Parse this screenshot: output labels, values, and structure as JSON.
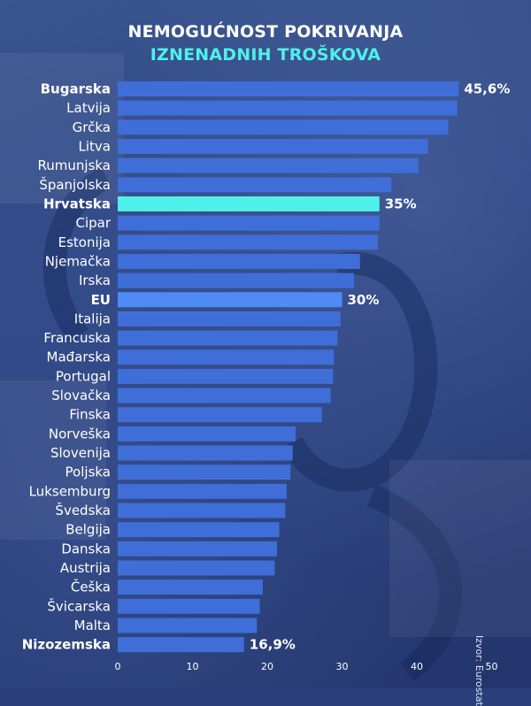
{
  "title_line1": "NEMOGUĆNOST POKRIVANJA",
  "title_line2": "IZNENADNIH TROŠKOVA",
  "source": "Izvor: Eurostat",
  "colors": {
    "bar_default": "#3f6ed8",
    "bar_highlight_croatia": "#4ff0ea",
    "bar_highlight_eu": "#4f8bf5",
    "title_accent": "#4ff0ea",
    "text": "#ffffff"
  },
  "chart_data": {
    "type": "bar",
    "orientation": "horizontal",
    "title": "NEMOGUĆNOST POKRIVANJA IZNENADNIH TROŠKOVA",
    "xlim": [
      0,
      50
    ],
    "x_ticks": [
      0,
      10,
      20,
      30,
      40,
      50
    ],
    "grid": false,
    "categories": [
      "Bugarska",
      "Latvija",
      "Grčka",
      "Litva",
      "Rumunjska",
      "Španjolska",
      "Hrvatska",
      "Cipar",
      "Estonija",
      "Njemačka",
      "Irska",
      "EU",
      "Italija",
      "Francuska",
      "Mađarska",
      "Portugal",
      "Slovačka",
      "Finska",
      "Norveška",
      "Slovenija",
      "Poljska",
      "Luksemburg",
      "Švedska",
      "Belgija",
      "Danska",
      "Austrija",
      "Češka",
      "Švicarska",
      "Malta",
      "Nizozemska"
    ],
    "values": [
      45.6,
      45.4,
      44.2,
      41.5,
      40.2,
      36.6,
      35.0,
      35.0,
      34.8,
      32.4,
      31.6,
      30.0,
      29.8,
      29.4,
      28.9,
      28.8,
      28.5,
      27.3,
      23.8,
      23.4,
      23.1,
      22.6,
      22.4,
      21.6,
      21.3,
      21.0,
      19.4,
      19.0,
      18.6,
      16.9
    ],
    "bold_categories": [
      "Bugarska",
      "Hrvatska",
      "EU",
      "Nizozemska"
    ],
    "highlights": {
      "Hrvatska": "croatia",
      "EU": "eu"
    },
    "data_labels": [
      {
        "category": "Bugarska",
        "text": "45,6%"
      },
      {
        "category": "Hrvatska",
        "text": "35%"
      },
      {
        "category": "EU",
        "text": "30%"
      },
      {
        "category": "Nizozemska",
        "text": "16,9%"
      }
    ]
  }
}
